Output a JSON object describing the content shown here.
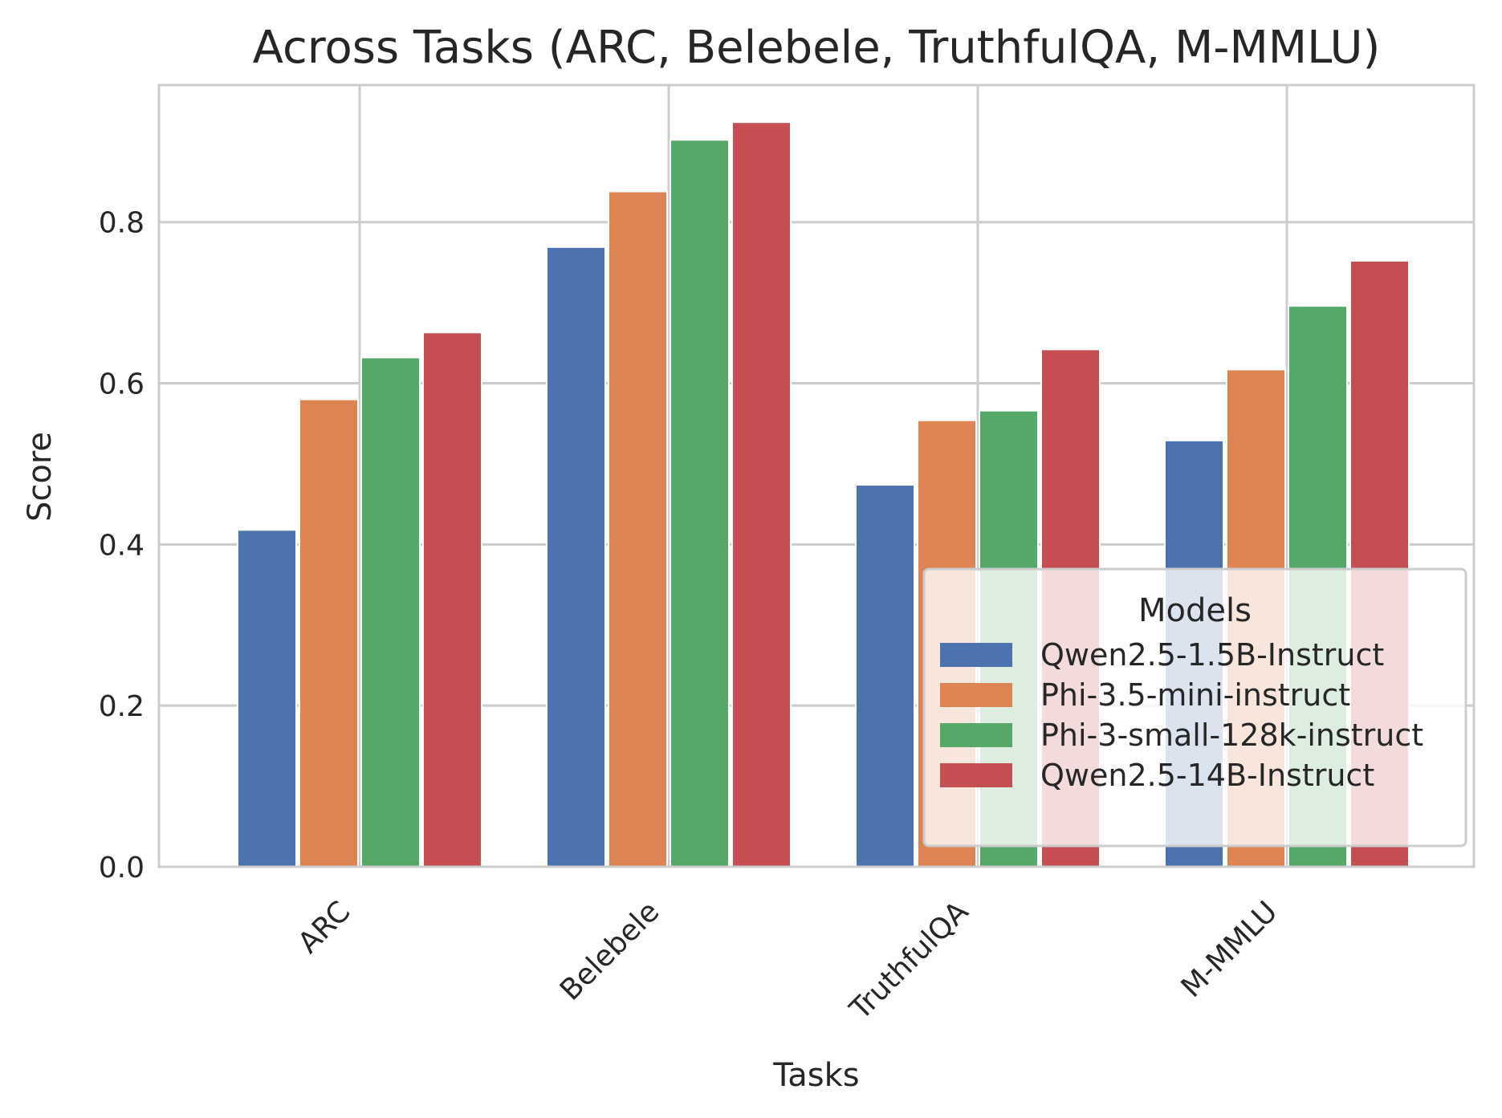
{
  "chart_data": {
    "type": "bar",
    "title": "Across Tasks (ARC, Belebele, TruthfulQA, M-MMLU)",
    "xlabel": "Tasks",
    "ylabel": "Score",
    "categories": [
      "ARC",
      "Belebele",
      "TruthfulQA",
      "M-MMLU"
    ],
    "ylim": [
      0,
      0.97
    ],
    "yticks": [
      "0.0",
      "0.2",
      "0.4",
      "0.6",
      "0.8"
    ],
    "ytick_values": [
      0.0,
      0.2,
      0.4,
      0.6,
      0.8
    ],
    "grid": true,
    "legend": {
      "title": "Models",
      "placement": "bottom-right"
    },
    "series": [
      {
        "name": "Qwen2.5-1.5B-Instruct",
        "color": "#4C72B0",
        "values": [
          0.418,
          0.769,
          0.474,
          0.529
        ]
      },
      {
        "name": "Phi-3.5-mini-instruct",
        "color": "#DD8452",
        "values": [
          0.58,
          0.838,
          0.554,
          0.617
        ]
      },
      {
        "name": "Phi-3-small-128k-instruct",
        "color": "#55A868",
        "values": [
          0.632,
          0.902,
          0.566,
          0.696
        ]
      },
      {
        "name": "Qwen2.5-14B-Instruct",
        "color": "#C44E52",
        "values": [
          0.663,
          0.924,
          0.642,
          0.752
        ]
      }
    ]
  }
}
